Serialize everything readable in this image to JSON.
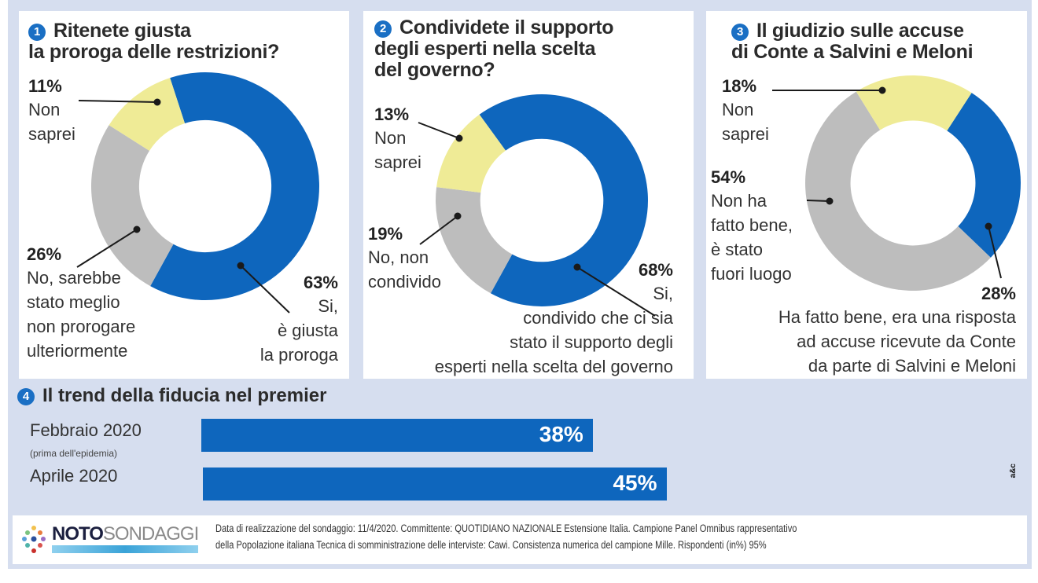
{
  "colors": {
    "yes_blue": "#0e66bd",
    "no_gray": "#bdbdbd",
    "dont_know_yellow": "#efeb96",
    "badge_blue": "#1a6fc4",
    "background": "#d6deef"
  },
  "chart_data": [
    {
      "type": "pie",
      "variant": "donut",
      "number": "1",
      "title": "Ritenete giusta la proroga delle restrizioni?",
      "title_lines": [
        "Ritenete giusta",
        "la proroga delle restrizioni?"
      ],
      "slices": [
        {
          "key": "yes",
          "pct_label": "63%",
          "value": 63,
          "label_lines": [
            "Si,",
            "è giusta",
            "la proroga"
          ],
          "color": "#0e66bd"
        },
        {
          "key": "no",
          "pct_label": "26%",
          "value": 26,
          "label_lines": [
            "No, sarebbe",
            "stato meglio",
            "non prorogare",
            "ulteriormente"
          ],
          "color": "#bdbdbd"
        },
        {
          "key": "dont_know",
          "pct_label": "11%",
          "value": 11,
          "label_lines": [
            "Non",
            "saprei"
          ],
          "color": "#efeb96"
        }
      ]
    },
    {
      "type": "pie",
      "variant": "donut",
      "number": "2",
      "title": "Condividete il supporto degli esperti nella scelta del governo?",
      "title_lines": [
        "Condividete il supporto",
        "degli esperti nella scelta",
        "del governo?"
      ],
      "slices": [
        {
          "key": "yes",
          "pct_label": "68%",
          "value": 68,
          "label_lines": [
            "Si,",
            "condivido che ci sia",
            "stato il supporto degli",
            "esperti nella scelta del governo"
          ],
          "color": "#0e66bd"
        },
        {
          "key": "no",
          "pct_label": "19%",
          "value": 19,
          "label_lines": [
            "No, non",
            "condivido"
          ],
          "color": "#bdbdbd"
        },
        {
          "key": "dont_know",
          "pct_label": "13%",
          "value": 13,
          "label_lines": [
            "Non",
            "saprei"
          ],
          "color": "#efeb96"
        }
      ]
    },
    {
      "type": "pie",
      "variant": "donut",
      "number": "3",
      "title": "Il giudizio sulle accuse di Conte a Salvini e Meloni",
      "title_lines": [
        "Il giudizio sulle accuse",
        "di Conte a Salvini e Meloni"
      ],
      "slices": [
        {
          "key": "yes",
          "pct_label": "28%",
          "value": 28,
          "label_lines": [
            "Ha fatto bene, era una risposta",
            "ad accuse ricevute da Conte",
            "da parte di Salvini e Meloni"
          ],
          "color": "#0e66bd"
        },
        {
          "key": "no",
          "pct_label": "54%",
          "value": 54,
          "label_lines": [
            "Non ha",
            "fatto bene,",
            "è stato",
            "fuori luogo"
          ],
          "color": "#bdbdbd"
        },
        {
          "key": "dont_know",
          "pct_label": "18%",
          "value": 18,
          "label_lines": [
            "Non",
            "saprei"
          ],
          "color": "#efeb96"
        }
      ]
    },
    {
      "type": "bar",
      "orientation": "horizontal",
      "number": "4",
      "title": "Il trend della fiducia nel premier",
      "categories": [
        "Febbraio 2020",
        "Aprile 2020"
      ],
      "category_notes": [
        "(prima dell'epidemia)",
        ""
      ],
      "values": [
        38,
        45
      ],
      "value_labels": [
        "38%",
        "45%"
      ],
      "unit": "%"
    }
  ],
  "credit": "a&c",
  "footer": {
    "logo_bold": "NOTO",
    "logo_light": "SONDAGGI",
    "note_line1": "Data di realizzazione del sondaggio: 11/4/2020. Committente: QUOTIDIANO NAZIONALE Estensione Italia. Campione Panel Omnibus rappresentativo",
    "note_line2": "della Popolazione italiana Tecnica di somministrazione delle interviste: Cawi. Consistenza numerica del campione Mille. Rispondenti (in%) 95%"
  }
}
